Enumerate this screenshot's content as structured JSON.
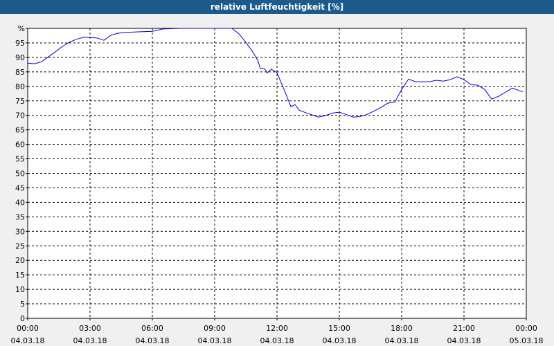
{
  "chart_data": {
    "type": "line",
    "title": "relative Luftfeuchtigkeit [%]",
    "x": [
      0,
      0.33,
      0.67,
      1.0,
      1.33,
      1.67,
      2.0,
      2.33,
      2.67,
      3.0,
      3.33,
      3.67,
      4.0,
      4.33,
      4.67,
      5.33,
      6.0,
      6.5,
      7.33,
      8.67,
      9.83,
      10.17,
      10.5,
      10.83,
      11.07,
      11.2,
      11.4,
      11.53,
      11.73,
      12.0,
      12.27,
      12.47,
      12.67,
      12.87,
      13.07,
      13.5,
      14.0,
      14.33,
      14.67,
      15.0,
      15.33,
      15.67,
      16.0,
      16.33,
      16.67,
      17.0,
      17.33,
      17.67,
      18.0,
      18.33,
      18.67,
      19.33,
      19.67,
      20.0,
      20.33,
      20.67,
      21.0,
      21.33,
      21.67,
      22.0,
      22.33,
      22.67,
      23.0,
      23.33,
      23.67,
      23.83
    ],
    "series": [
      {
        "name": "relative Luftfeuchtigkeit",
        "color": "#0000cc",
        "values": [
          88.0,
          87.8,
          88.5,
          90.2,
          91.9,
          93.8,
          95.2,
          96.2,
          96.9,
          96.9,
          96.7,
          95.9,
          97.6,
          98.3,
          98.6,
          98.8,
          99.0,
          99.8,
          100,
          100,
          100,
          98.1,
          95.2,
          91.9,
          89.0,
          86.1,
          86.1,
          84.7,
          85.9,
          84.7,
          80.1,
          76.6,
          73.0,
          73.7,
          71.8,
          70.6,
          69.4,
          69.9,
          70.8,
          71.1,
          70.3,
          69.4,
          69.6,
          70.3,
          71.5,
          72.7,
          74.2,
          74.6,
          78.9,
          82.5,
          81.6,
          81.6,
          82.1,
          81.8,
          82.3,
          83.3,
          82.3,
          80.6,
          80.4,
          78.9,
          75.6,
          76.6,
          78.0,
          79.4,
          78.5,
          78.2
        ]
      }
    ],
    "xlim": [
      0,
      24
    ],
    "xticks": [
      {
        "value": 0,
        "label": "00:00\n04.03.18"
      },
      {
        "value": 3,
        "label": "03:00\n04.03.18"
      },
      {
        "value": 6,
        "label": "06:00\n04.03.18"
      },
      {
        "value": 9,
        "label": "09:00\n04.03.18"
      },
      {
        "value": 12,
        "label": "12:00\n04.03.18"
      },
      {
        "value": 15,
        "label": "15:00\n04.03.18"
      },
      {
        "value": 18,
        "label": "18:00\n04.03.18"
      },
      {
        "value": 21,
        "label": "21:00\n04.03.18"
      },
      {
        "value": 24,
        "label": "00:00\n05.03.18"
      }
    ],
    "ylim": [
      0,
      100
    ],
    "yticks": [
      0,
      5,
      10,
      15,
      20,
      25,
      30,
      35,
      40,
      45,
      50,
      55,
      60,
      65,
      70,
      75,
      80,
      85,
      90,
      95,
      {
        "value": 100,
        "label": "%"
      }
    ],
    "grid": true
  }
}
